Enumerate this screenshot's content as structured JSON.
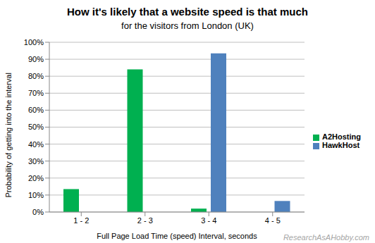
{
  "chart_data": {
    "type": "bar",
    "title": "How it's likely that a website speed is that much",
    "subtitle": "for the visitors from London (UK)",
    "x_label": "Full Page Load Time (speed)  Interval, seconds",
    "y_label": "Probability of getting into the interval",
    "annotations": [
      "ResearchAsAHobby.com"
    ],
    "categories": [
      "1 - 2",
      "2 - 3",
      "3 - 4",
      "4 - 5"
    ],
    "series": [
      {
        "name": "A2Hosting",
        "color": "#00b050",
        "values": [
          13.5,
          84,
          2,
          null
        ]
      },
      {
        "name": "HawkHost",
        "color": "#4f81bd",
        "values": [
          null,
          null,
          93.5,
          6.5
        ]
      }
    ],
    "ylim": [
      0,
      100
    ],
    "yticks": [
      {
        "value": 0,
        "label": "0%"
      },
      {
        "value": 10,
        "label": "10%"
      },
      {
        "value": 20,
        "label": "20%"
      },
      {
        "value": 30,
        "label": "30%"
      },
      {
        "value": 40,
        "label": "40%"
      },
      {
        "value": 50,
        "label": "50%"
      },
      {
        "value": 60,
        "label": "60%"
      },
      {
        "value": 70,
        "label": "70%"
      },
      {
        "value": 80,
        "label": "80%"
      },
      {
        "value": 90,
        "label": "90%"
      },
      {
        "value": 100,
        "label": "100%"
      }
    ],
    "grid": true,
    "legend": "right"
  }
}
